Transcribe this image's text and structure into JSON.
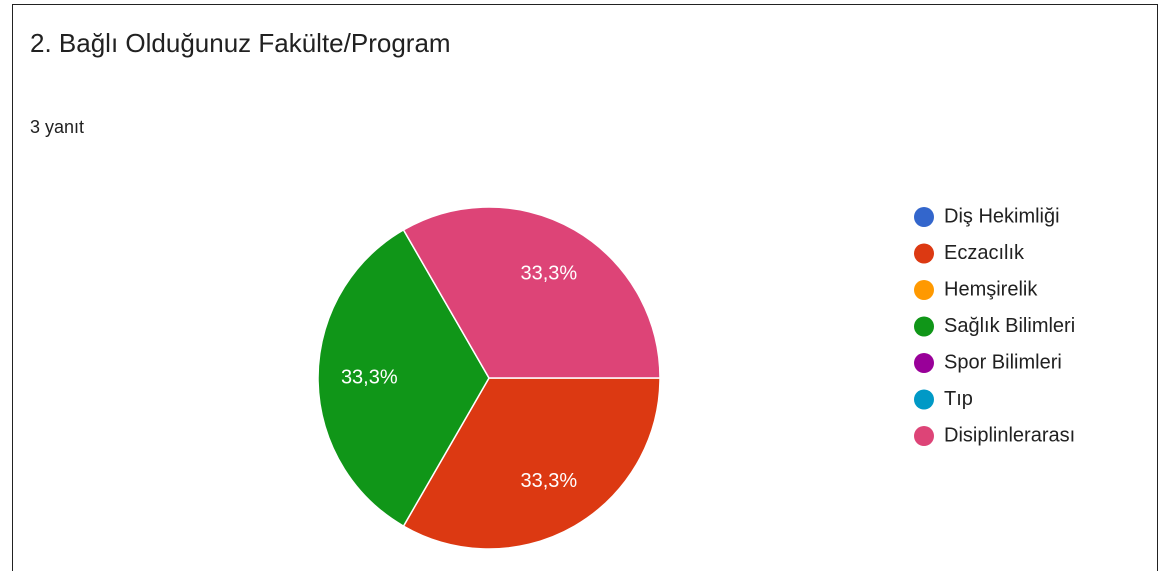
{
  "chart_data": {
    "type": "pie",
    "title": "2. Bağlı Olduğunuz Fakülte/Program",
    "subtitle": "3 yanıt",
    "categories": [
      "Diş Hekimliği",
      "Eczacılık",
      "Hemşirelik",
      "Sağlık Bilimleri",
      "Spor Bilimleri",
      "Tıp",
      "Disiplinlerarası"
    ],
    "values": [
      0,
      33.3,
      0,
      33.3,
      0,
      0,
      33.3
    ],
    "value_labels": [
      null,
      "33,3%",
      null,
      "33,3%",
      null,
      null,
      "33,3%"
    ],
    "colors": [
      "#3366cc",
      "#dc3912",
      "#ff9900",
      "#109618",
      "#990099",
      "#0099c6",
      "#dd4477"
    ],
    "legend": "right"
  }
}
